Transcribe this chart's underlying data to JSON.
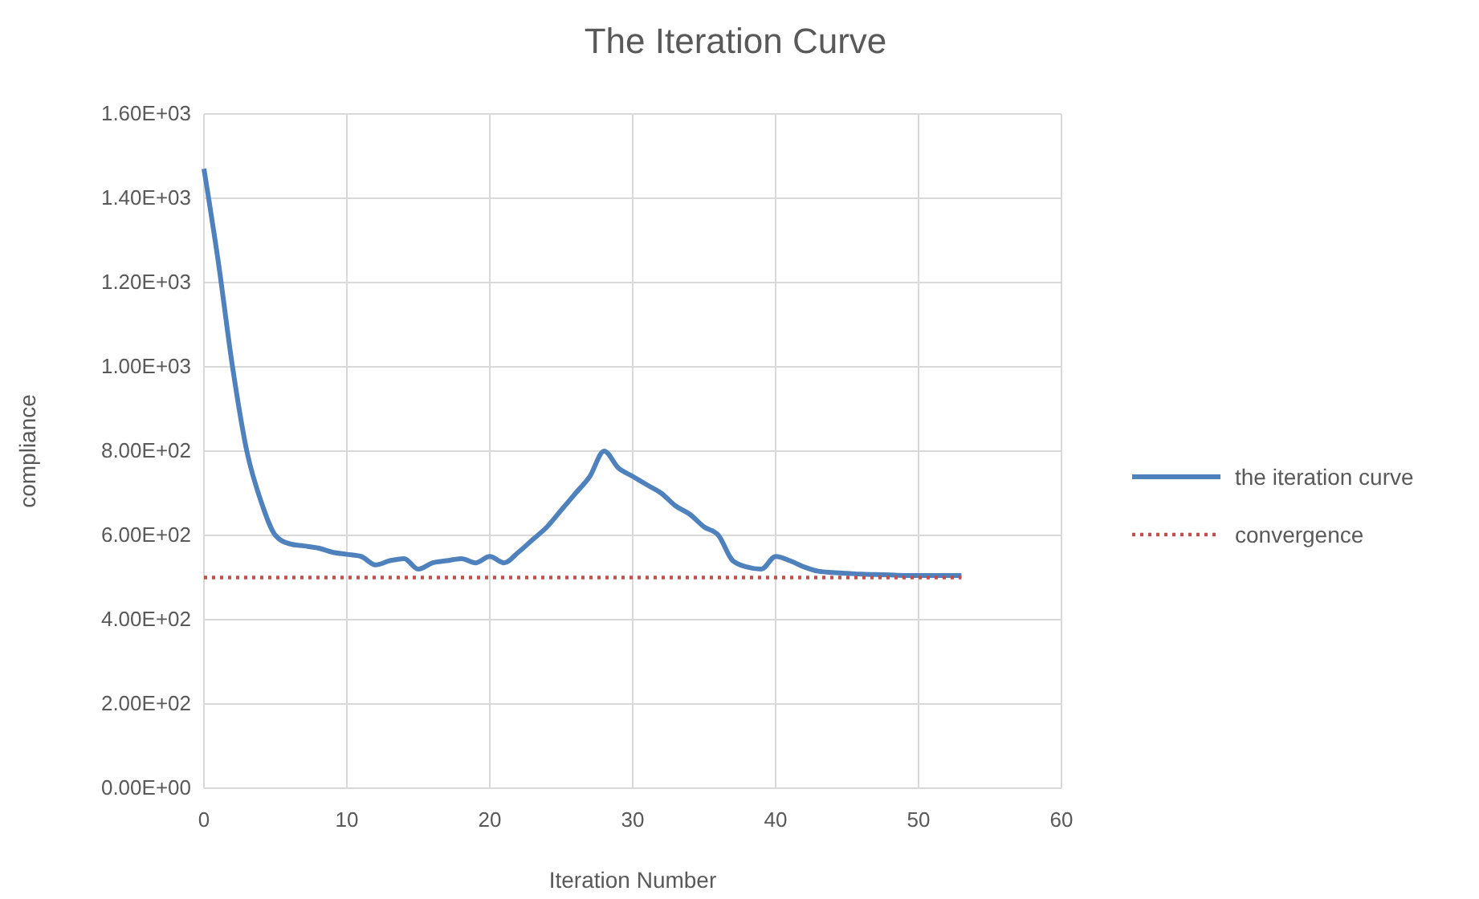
{
  "chart_data": {
    "type": "line",
    "title": "The Iteration Curve",
    "xlabel": "Iteration Number",
    "ylabel": "compliance",
    "x": [
      0,
      1,
      2,
      3,
      4,
      5,
      6,
      7,
      8,
      9,
      10,
      11,
      12,
      13,
      14,
      15,
      16,
      17,
      18,
      19,
      20,
      21,
      22,
      23,
      24,
      25,
      26,
      27,
      28,
      29,
      30,
      31,
      32,
      33,
      34,
      35,
      36,
      37,
      38,
      39,
      40,
      41,
      42,
      43,
      44,
      45,
      46,
      47,
      48,
      49,
      50,
      51,
      52,
      53
    ],
    "series": [
      {
        "name": "the iteration curve",
        "color": "#4f81bd",
        "line_style": "solid",
        "values": [
          1470,
          1250,
          1000,
          800,
          680,
          600,
          580,
          575,
          570,
          560,
          555,
          550,
          530,
          540,
          545,
          520,
          535,
          540,
          545,
          535,
          550,
          535,
          560,
          590,
          620,
          660,
          700,
          740,
          800,
          760,
          740,
          720,
          700,
          670,
          650,
          620,
          600,
          540,
          525,
          520,
          550,
          540,
          525,
          515,
          512,
          510,
          508,
          507,
          506,
          505,
          505,
          505,
          505,
          505
        ]
      },
      {
        "name": "convergence",
        "color": "#c0504d",
        "line_style": "dotted",
        "values": [
          500,
          500,
          500,
          500,
          500,
          500,
          500,
          500,
          500,
          500,
          500,
          500,
          500,
          500,
          500,
          500,
          500,
          500,
          500,
          500,
          500,
          500,
          500,
          500,
          500,
          500,
          500,
          500,
          500,
          500,
          500,
          500,
          500,
          500,
          500,
          500,
          500,
          500,
          500,
          500,
          500,
          500,
          500,
          500,
          500,
          500,
          500,
          500,
          500,
          500,
          500,
          500,
          500,
          500
        ]
      }
    ],
    "xlim": [
      0,
      60
    ],
    "xticks": [
      0,
      10,
      20,
      30,
      40,
      50,
      60
    ],
    "ylim": [
      0,
      1600
    ],
    "yticks": [
      {
        "value": 0,
        "label": "0.00E+00"
      },
      {
        "value": 200,
        "label": "2.00E+02"
      },
      {
        "value": 400,
        "label": "4.00E+02"
      },
      {
        "value": 600,
        "label": "6.00E+02"
      },
      {
        "value": 800,
        "label": "8.00E+02"
      },
      {
        "value": 1000,
        "label": "1.00E+03"
      },
      {
        "value": 1200,
        "label": "1.20E+03"
      },
      {
        "value": 1400,
        "label": "1.40E+03"
      },
      {
        "value": 1600,
        "label": "1.60E+03"
      }
    ],
    "grid": true,
    "legend": "right",
    "marker": "none"
  }
}
